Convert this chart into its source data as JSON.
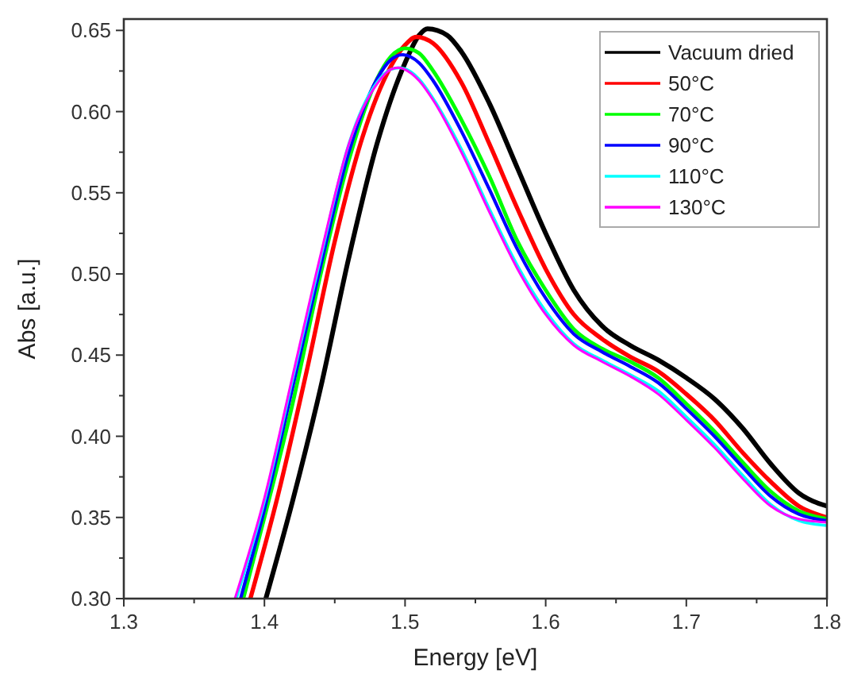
{
  "chart_data": {
    "type": "line",
    "xlabel": "Energy [eV]",
    "ylabel": "Abs [a.u.]",
    "xlim": [
      1.3,
      1.8
    ],
    "ylim": [
      0.3,
      0.657
    ],
    "xticks": [
      {
        "value": 1.3,
        "label": "1.3"
      },
      {
        "value": 1.35,
        "label": null
      },
      {
        "value": 1.4,
        "label": "1.4"
      },
      {
        "value": 1.45,
        "label": null
      },
      {
        "value": 1.5,
        "label": "1.5"
      },
      {
        "value": 1.55,
        "label": null
      },
      {
        "value": 1.6,
        "label": "1.6"
      },
      {
        "value": 1.65,
        "label": null
      },
      {
        "value": 1.7,
        "label": "1.7"
      },
      {
        "value": 1.75,
        "label": null
      },
      {
        "value": 1.8,
        "label": "1.8"
      }
    ],
    "yticks": [
      {
        "value": 0.3,
        "label": "0.30"
      },
      {
        "value": 0.325,
        "label": null
      },
      {
        "value": 0.35,
        "label": "0.35"
      },
      {
        "value": 0.375,
        "label": null
      },
      {
        "value": 0.4,
        "label": "0.40"
      },
      {
        "value": 0.425,
        "label": null
      },
      {
        "value": 0.45,
        "label": "0.45"
      },
      {
        "value": 0.475,
        "label": null
      },
      {
        "value": 0.5,
        "label": "0.50"
      },
      {
        "value": 0.525,
        "label": null
      },
      {
        "value": 0.55,
        "label": "0.55"
      },
      {
        "value": 0.575,
        "label": null
      },
      {
        "value": 0.6,
        "label": "0.60"
      },
      {
        "value": 0.625,
        "label": null
      },
      {
        "value": 0.65,
        "label": "0.65"
      }
    ],
    "grid": false,
    "legend": "top right",
    "marker": "none",
    "line_style": "solid",
    "series": [
      {
        "name": "Vacuum dried",
        "color": "#000000",
        "x": [
          1.401,
          1.42,
          1.44,
          1.46,
          1.48,
          1.5,
          1.51,
          1.516,
          1.53,
          1.54,
          1.56,
          1.58,
          1.6,
          1.62,
          1.64,
          1.66,
          1.68,
          1.7,
          1.72,
          1.74,
          1.76,
          1.78,
          1.8
        ],
        "values": [
          0.3,
          0.36,
          0.43,
          0.51,
          0.58,
          0.63,
          0.647,
          0.651,
          0.647,
          0.637,
          0.605,
          0.565,
          0.525,
          0.49,
          0.468,
          0.456,
          0.447,
          0.436,
          0.423,
          0.405,
          0.383,
          0.365,
          0.357
        ]
      },
      {
        "name": "50°C",
        "color": "#ff0000",
        "x": [
          1.39,
          1.41,
          1.43,
          1.45,
          1.47,
          1.49,
          1.5,
          1.508,
          1.52,
          1.54,
          1.56,
          1.58,
          1.6,
          1.62,
          1.64,
          1.66,
          1.68,
          1.7,
          1.72,
          1.74,
          1.76,
          1.78,
          1.8
        ],
        "values": [
          0.3,
          0.365,
          0.44,
          0.52,
          0.585,
          0.628,
          0.641,
          0.646,
          0.642,
          0.618,
          0.58,
          0.54,
          0.503,
          0.475,
          0.46,
          0.449,
          0.44,
          0.426,
          0.41,
          0.39,
          0.372,
          0.357,
          0.35
        ]
      },
      {
        "name": "70°C",
        "color": "#00ff00",
        "x": [
          1.385,
          1.4,
          1.42,
          1.44,
          1.46,
          1.48,
          1.49,
          1.5,
          1.51,
          1.52,
          1.54,
          1.56,
          1.58,
          1.6,
          1.62,
          1.64,
          1.66,
          1.68,
          1.7,
          1.72,
          1.74,
          1.76,
          1.78,
          1.8
        ],
        "values": [
          0.3,
          0.35,
          0.42,
          0.5,
          0.57,
          0.62,
          0.634,
          0.639,
          0.636,
          0.625,
          0.595,
          0.56,
          0.52,
          0.49,
          0.466,
          0.454,
          0.446,
          0.436,
          0.42,
          0.403,
          0.384,
          0.366,
          0.354,
          0.349
        ]
      },
      {
        "name": "90°C",
        "color": "#0000ff",
        "x": [
          1.383,
          1.4,
          1.42,
          1.44,
          1.46,
          1.48,
          1.49,
          1.498,
          1.51,
          1.52,
          1.54,
          1.56,
          1.58,
          1.6,
          1.62,
          1.64,
          1.66,
          1.68,
          1.7,
          1.72,
          1.74,
          1.76,
          1.78,
          1.8
        ],
        "values": [
          0.3,
          0.355,
          0.43,
          0.505,
          0.575,
          0.62,
          0.632,
          0.635,
          0.63,
          0.619,
          0.588,
          0.552,
          0.515,
          0.485,
          0.463,
          0.452,
          0.443,
          0.433,
          0.417,
          0.4,
          0.381,
          0.363,
          0.352,
          0.348
        ]
      },
      {
        "name": "110°C",
        "color": "#00ffff",
        "x": [
          1.38,
          1.4,
          1.42,
          1.44,
          1.46,
          1.48,
          1.49,
          1.496,
          1.51,
          1.52,
          1.54,
          1.56,
          1.58,
          1.6,
          1.62,
          1.64,
          1.66,
          1.68,
          1.7,
          1.72,
          1.74,
          1.76,
          1.78,
          1.8
        ],
        "values": [
          0.3,
          0.36,
          0.435,
          0.51,
          0.58,
          0.618,
          0.626,
          0.627,
          0.62,
          0.608,
          0.577,
          0.54,
          0.505,
          0.477,
          0.457,
          0.447,
          0.438,
          0.428,
          0.412,
          0.395,
          0.376,
          0.358,
          0.348,
          0.345
        ]
      },
      {
        "name": "130°C",
        "color": "#ff00ff",
        "x": [
          1.379,
          1.4,
          1.42,
          1.44,
          1.46,
          1.48,
          1.49,
          1.495,
          1.51,
          1.52,
          1.54,
          1.56,
          1.58,
          1.6,
          1.62,
          1.64,
          1.66,
          1.68,
          1.7,
          1.72,
          1.74,
          1.76,
          1.78,
          1.8
        ],
        "values": [
          0.3,
          0.362,
          0.437,
          0.512,
          0.58,
          0.617,
          0.626,
          0.627,
          0.619,
          0.607,
          0.575,
          0.538,
          0.503,
          0.475,
          0.456,
          0.446,
          0.437,
          0.426,
          0.41,
          0.393,
          0.374,
          0.357,
          0.349,
          0.347
        ]
      }
    ]
  }
}
